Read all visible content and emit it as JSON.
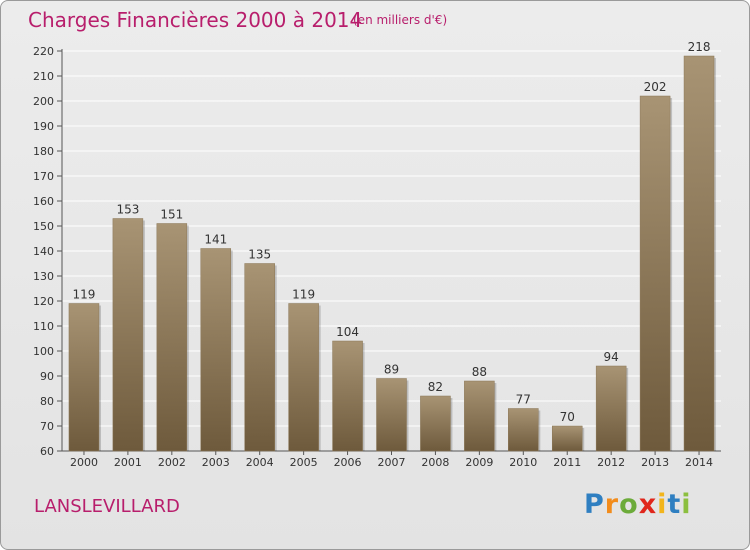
{
  "title": "Charges Financières 2000 à 2014",
  "subtitle": "(en milliers d'€)",
  "commune": "LANSLEVILLARD",
  "logo": "Proxiti",
  "colors": {
    "title": "#b81e6c",
    "bar_top": "#a89474",
    "bar_bottom": "#6e5a3c",
    "grid": "#ffffff"
  },
  "chart_data": {
    "type": "bar",
    "categories": [
      "2000",
      "2001",
      "2002",
      "2003",
      "2004",
      "2005",
      "2006",
      "2007",
      "2008",
      "2009",
      "2010",
      "2011",
      "2012",
      "2013",
      "2014"
    ],
    "values": [
      119,
      153,
      151,
      141,
      135,
      119,
      104,
      89,
      82,
      88,
      77,
      70,
      94,
      202,
      218
    ],
    "ylim": [
      60,
      220
    ],
    "yticks": [
      60,
      70,
      80,
      90,
      100,
      110,
      120,
      130,
      140,
      150,
      160,
      170,
      180,
      190,
      200,
      210,
      220
    ],
    "xlabel": "",
    "ylabel": "",
    "grid": true,
    "legend": "none"
  }
}
